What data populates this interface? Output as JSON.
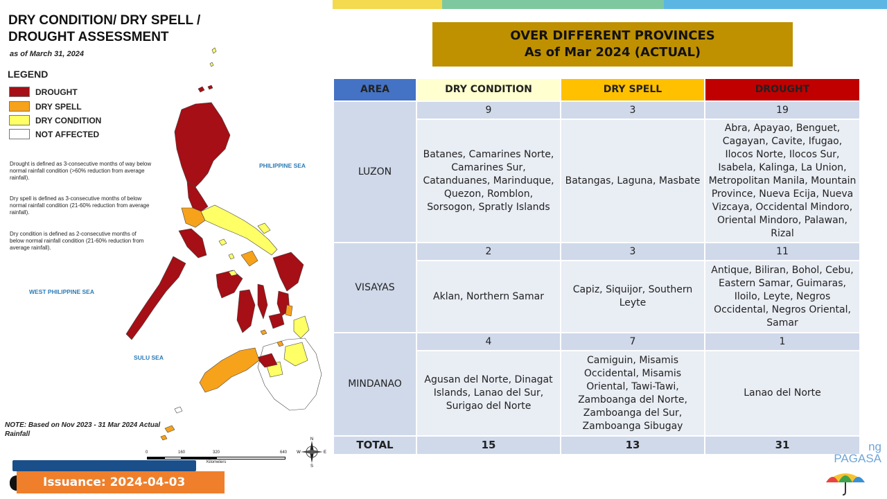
{
  "map": {
    "title": "DRY CONDITION/ DRY SPELL / DROUGHT ASSESSMENT",
    "as_of": "as of March 31, 2024",
    "legend_title": "LEGEND",
    "legend": [
      {
        "label": "DROUGHT",
        "color": "#a50f15"
      },
      {
        "label": "DRY SPELL",
        "color": "#f7a21b"
      },
      {
        "label": "DRY CONDITION",
        "color": "#ffff66"
      },
      {
        "label": "NOT AFFECTED",
        "color": "#ffffff"
      }
    ],
    "definitions": [
      "Drought is defined as 3-consecutive months of way below normal rainfall condition (>60% reduction from average rainfall).",
      "Dry spell is defined as 3-consecutive months of below normal rainfall condition (21-60% reduction from average rainfall).",
      "Dry condition is defined as 2-consecutive months of below normal rainfall condition (21-60% reduction from average rainfall)."
    ],
    "seas": {
      "philippine_sea": "PHILIPPINE SEA",
      "west_philippine_sea": "WEST PHILIPPINE SEA",
      "sulu_sea": "SULU SEA"
    },
    "note": "NOTE: Based on Nov 2023 - 31 Mar 2024 Actual Rainfall",
    "scale": {
      "ticks": [
        "0",
        "160",
        "320",
        "640"
      ],
      "units": "Kilometers"
    },
    "compass": {
      "n": "N",
      "s": "S",
      "e": "E",
      "w": "W"
    }
  },
  "issuance": "Issuance: 2024-04-03",
  "heading": {
    "line1": "OVER DIFFERENT PROVINCES",
    "line2": "As of Mar 2024 (ACTUAL)"
  },
  "table": {
    "headers": [
      "AREA",
      "DRY CONDITION",
      "DRY SPELL",
      "DROUGHT"
    ],
    "rows": [
      {
        "area": "LUZON",
        "counts": [
          "9",
          "3",
          "19"
        ],
        "lists": [
          "Batanes, Camarines Norte, Camarines Sur, Catanduanes, Marinduque, Quezon, Romblon, Sorsogon, Spratly Islands",
          "Batangas, Laguna, Masbate",
          "Abra, Apayao, Benguet, Cagayan, Cavite, Ifugao, Ilocos Norte, Ilocos Sur, Isabela, Kalinga, La Union, Metropolitan Manila, Mountain Province, Nueva Ecija, Nueva Vizcaya, Occidental Mindoro, Oriental Mindoro, Palawan, Rizal"
        ]
      },
      {
        "area": "VISAYAS",
        "counts": [
          "2",
          "3",
          "11"
        ],
        "lists": [
          "Aklan, Northern Samar",
          "Capiz, Siquijor, Southern Leyte",
          "Antique, Biliran, Bohol, Cebu, Eastern Samar, Guimaras, Iloilo, Leyte, Negros Occidental, Negros Oriental, Samar"
        ]
      },
      {
        "area": "MINDANAO",
        "counts": [
          "4",
          "7",
          "1"
        ],
        "lists": [
          "Agusan del Norte, Dinagat Islands, Lanao del Sur, Surigao del Norte",
          "Camiguin, Misamis Occidental, Misamis Oriental, Tawi-Tawi, Zamboanga del Norte, Zamboanga del Sur, Zamboanga Sibugay",
          "Lanao del Norte"
        ]
      }
    ],
    "total": {
      "label": "TOTAL",
      "values": [
        "15",
        "13",
        "31"
      ]
    }
  },
  "logo": {
    "line1": "ng",
    "line2": "PAGASA"
  }
}
